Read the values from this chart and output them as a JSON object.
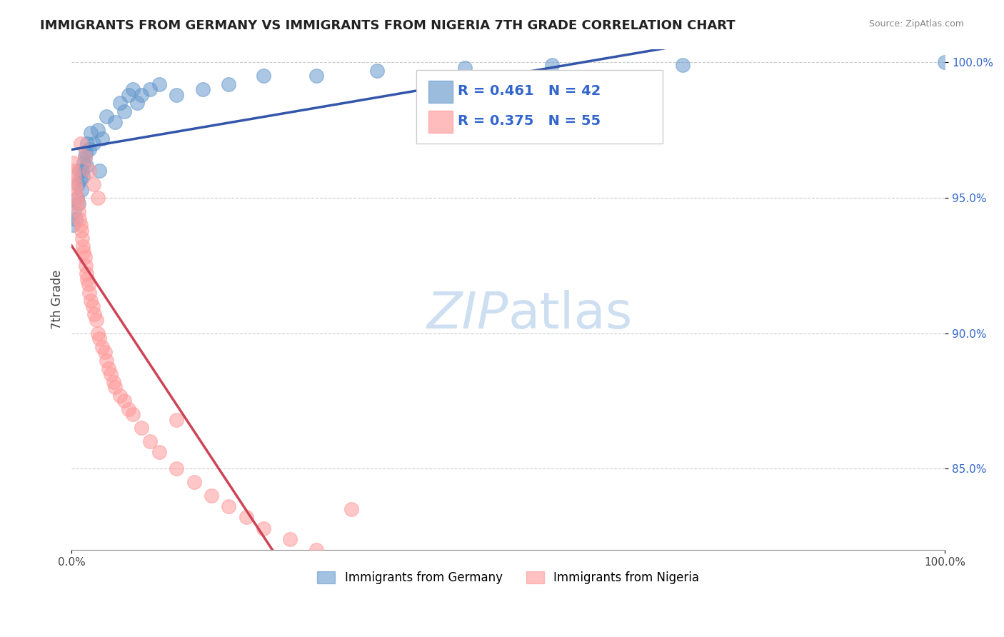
{
  "title": "IMMIGRANTS FROM GERMANY VS IMMIGRANTS FROM NIGERIA 7TH GRADE CORRELATION CHART",
  "source": "Source: ZipAtlas.com",
  "ylabel": "7th Grade",
  "legend_germany": "Immigrants from Germany",
  "legend_nigeria": "Immigrants from Nigeria",
  "R_germany": 0.461,
  "N_germany": 42,
  "R_nigeria": 0.375,
  "N_nigeria": 55,
  "germany_color": "#6699CC",
  "nigeria_color": "#FF9999",
  "germany_line_color": "#3355AA",
  "nigeria_line_color": "#CC4455",
  "xlim": [
    0.0,
    1.0
  ],
  "ylim": [
    0.82,
    1.005
  ],
  "yticks": [
    0.85,
    0.9,
    0.95,
    1.0
  ],
  "ytick_labels": [
    "85.0%",
    "90.0%",
    "95.0%",
    "100.0%"
  ],
  "germany_x": [
    0.001,
    0.003,
    0.005,
    0.006,
    0.007,
    0.008,
    0.009,
    0.01,
    0.011,
    0.012,
    0.013,
    0.014,
    0.015,
    0.016,
    0.017,
    0.018,
    0.02,
    0.022,
    0.025,
    0.03,
    0.032,
    0.035,
    0.04,
    0.05,
    0.055,
    0.06,
    0.065,
    0.07,
    0.075,
    0.08,
    0.09,
    0.1,
    0.12,
    0.15,
    0.18,
    0.22,
    0.28,
    0.35,
    0.45,
    0.55,
    0.7,
    1.0
  ],
  "germany_y": [
    0.94,
    0.945,
    0.942,
    0.95,
    0.955,
    0.948,
    0.96,
    0.957,
    0.953,
    0.96,
    0.958,
    0.963,
    0.965,
    0.967,
    0.962,
    0.97,
    0.968,
    0.974,
    0.97,
    0.975,
    0.96,
    0.972,
    0.98,
    0.978,
    0.985,
    0.982,
    0.988,
    0.99,
    0.985,
    0.988,
    0.99,
    0.992,
    0.988,
    0.99,
    0.992,
    0.995,
    0.995,
    0.997,
    0.998,
    0.999,
    0.999,
    1.0
  ],
  "nigeria_x": [
    0.001,
    0.002,
    0.003,
    0.004,
    0.005,
    0.006,
    0.007,
    0.008,
    0.009,
    0.01,
    0.011,
    0.012,
    0.013,
    0.014,
    0.015,
    0.016,
    0.017,
    0.018,
    0.019,
    0.02,
    0.022,
    0.024,
    0.026,
    0.028,
    0.03,
    0.032,
    0.035,
    0.038,
    0.04,
    0.042,
    0.045,
    0.048,
    0.05,
    0.055,
    0.06,
    0.065,
    0.07,
    0.08,
    0.09,
    0.1,
    0.12,
    0.14,
    0.16,
    0.18,
    0.2,
    0.22,
    0.25,
    0.28,
    0.32,
    0.01,
    0.015,
    0.02,
    0.025,
    0.03,
    0.12
  ],
  "nigeria_y": [
    0.963,
    0.96,
    0.958,
    0.955,
    0.953,
    0.95,
    0.948,
    0.945,
    0.942,
    0.94,
    0.938,
    0.935,
    0.932,
    0.93,
    0.928,
    0.925,
    0.922,
    0.92,
    0.918,
    0.915,
    0.912,
    0.91,
    0.907,
    0.905,
    0.9,
    0.898,
    0.895,
    0.893,
    0.89,
    0.887,
    0.885,
    0.882,
    0.88,
    0.877,
    0.875,
    0.872,
    0.87,
    0.865,
    0.86,
    0.856,
    0.85,
    0.845,
    0.84,
    0.836,
    0.832,
    0.828,
    0.824,
    0.82,
    0.835,
    0.97,
    0.965,
    0.96,
    0.955,
    0.95,
    0.868
  ]
}
